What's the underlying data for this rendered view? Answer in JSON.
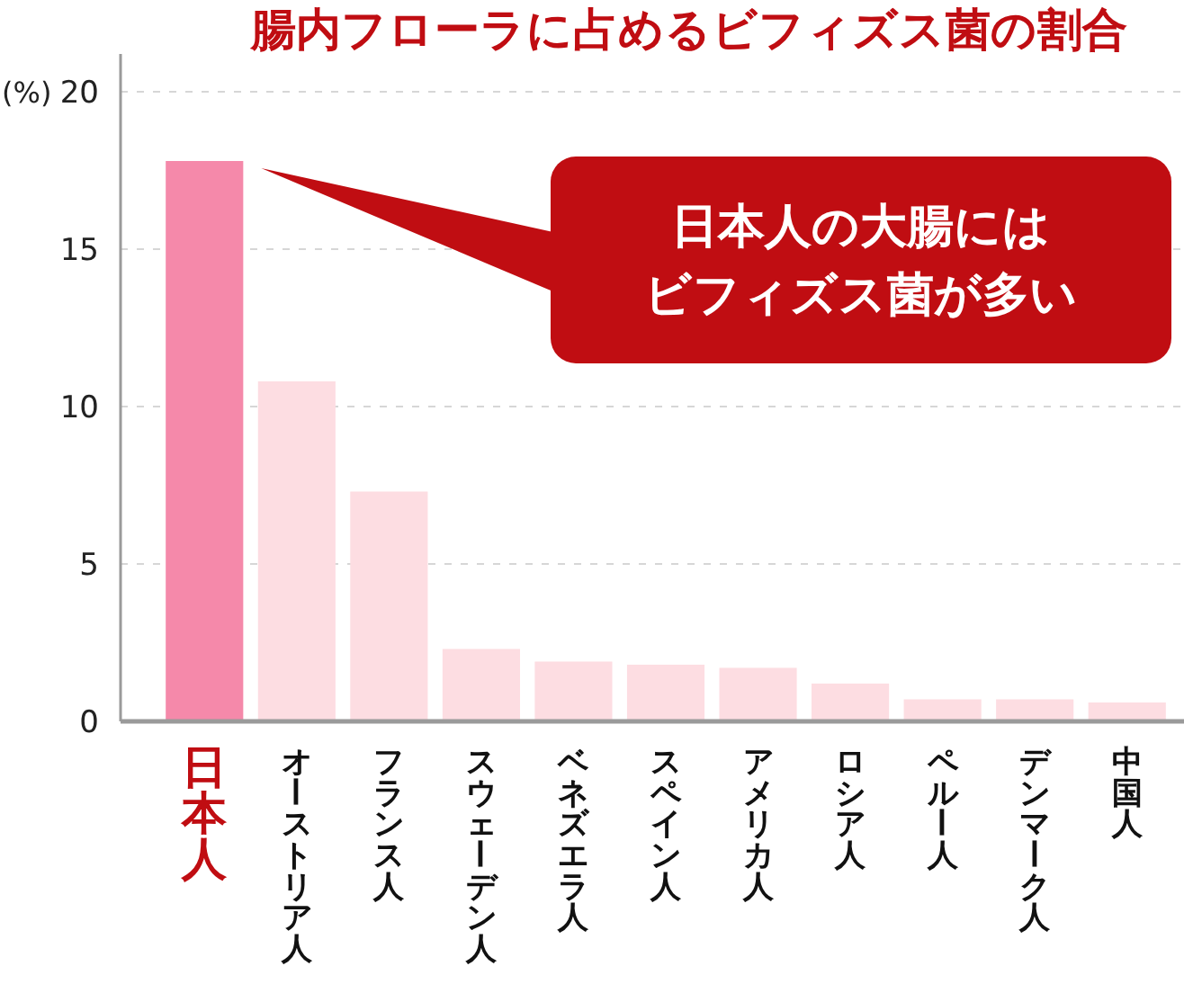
{
  "chart_data": {
    "type": "bar",
    "title": "腸内フローラに占めるビフィズス菌の割合",
    "ylabel": "(%)",
    "categories": [
      "日本人",
      "オーストリア人",
      "フランス人",
      "スウェーデン人",
      "ベネズエラ人",
      "スペイン人",
      "アメリカ人",
      "ロシア人",
      "ペルー人",
      "デンマーク人",
      "中国人"
    ],
    "values": [
      17.8,
      10.8,
      7.3,
      2.3,
      1.9,
      1.8,
      1.7,
      1.2,
      0.7,
      0.7,
      0.6
    ],
    "colors": [
      "#f589aa",
      "#fddde2",
      "#fddde2",
      "#fddde2",
      "#fddde2",
      "#fddde2",
      "#fddde2",
      "#fddde2",
      "#fddde2",
      "#fddde2",
      "#fddde2"
    ],
    "ylim": [
      0,
      21.2
    ],
    "yticks": [
      0,
      5,
      10,
      15,
      20
    ],
    "grid": "y",
    "annotations": [
      "日本人の大腸にはビフィズス菌が多い"
    ]
  }
}
